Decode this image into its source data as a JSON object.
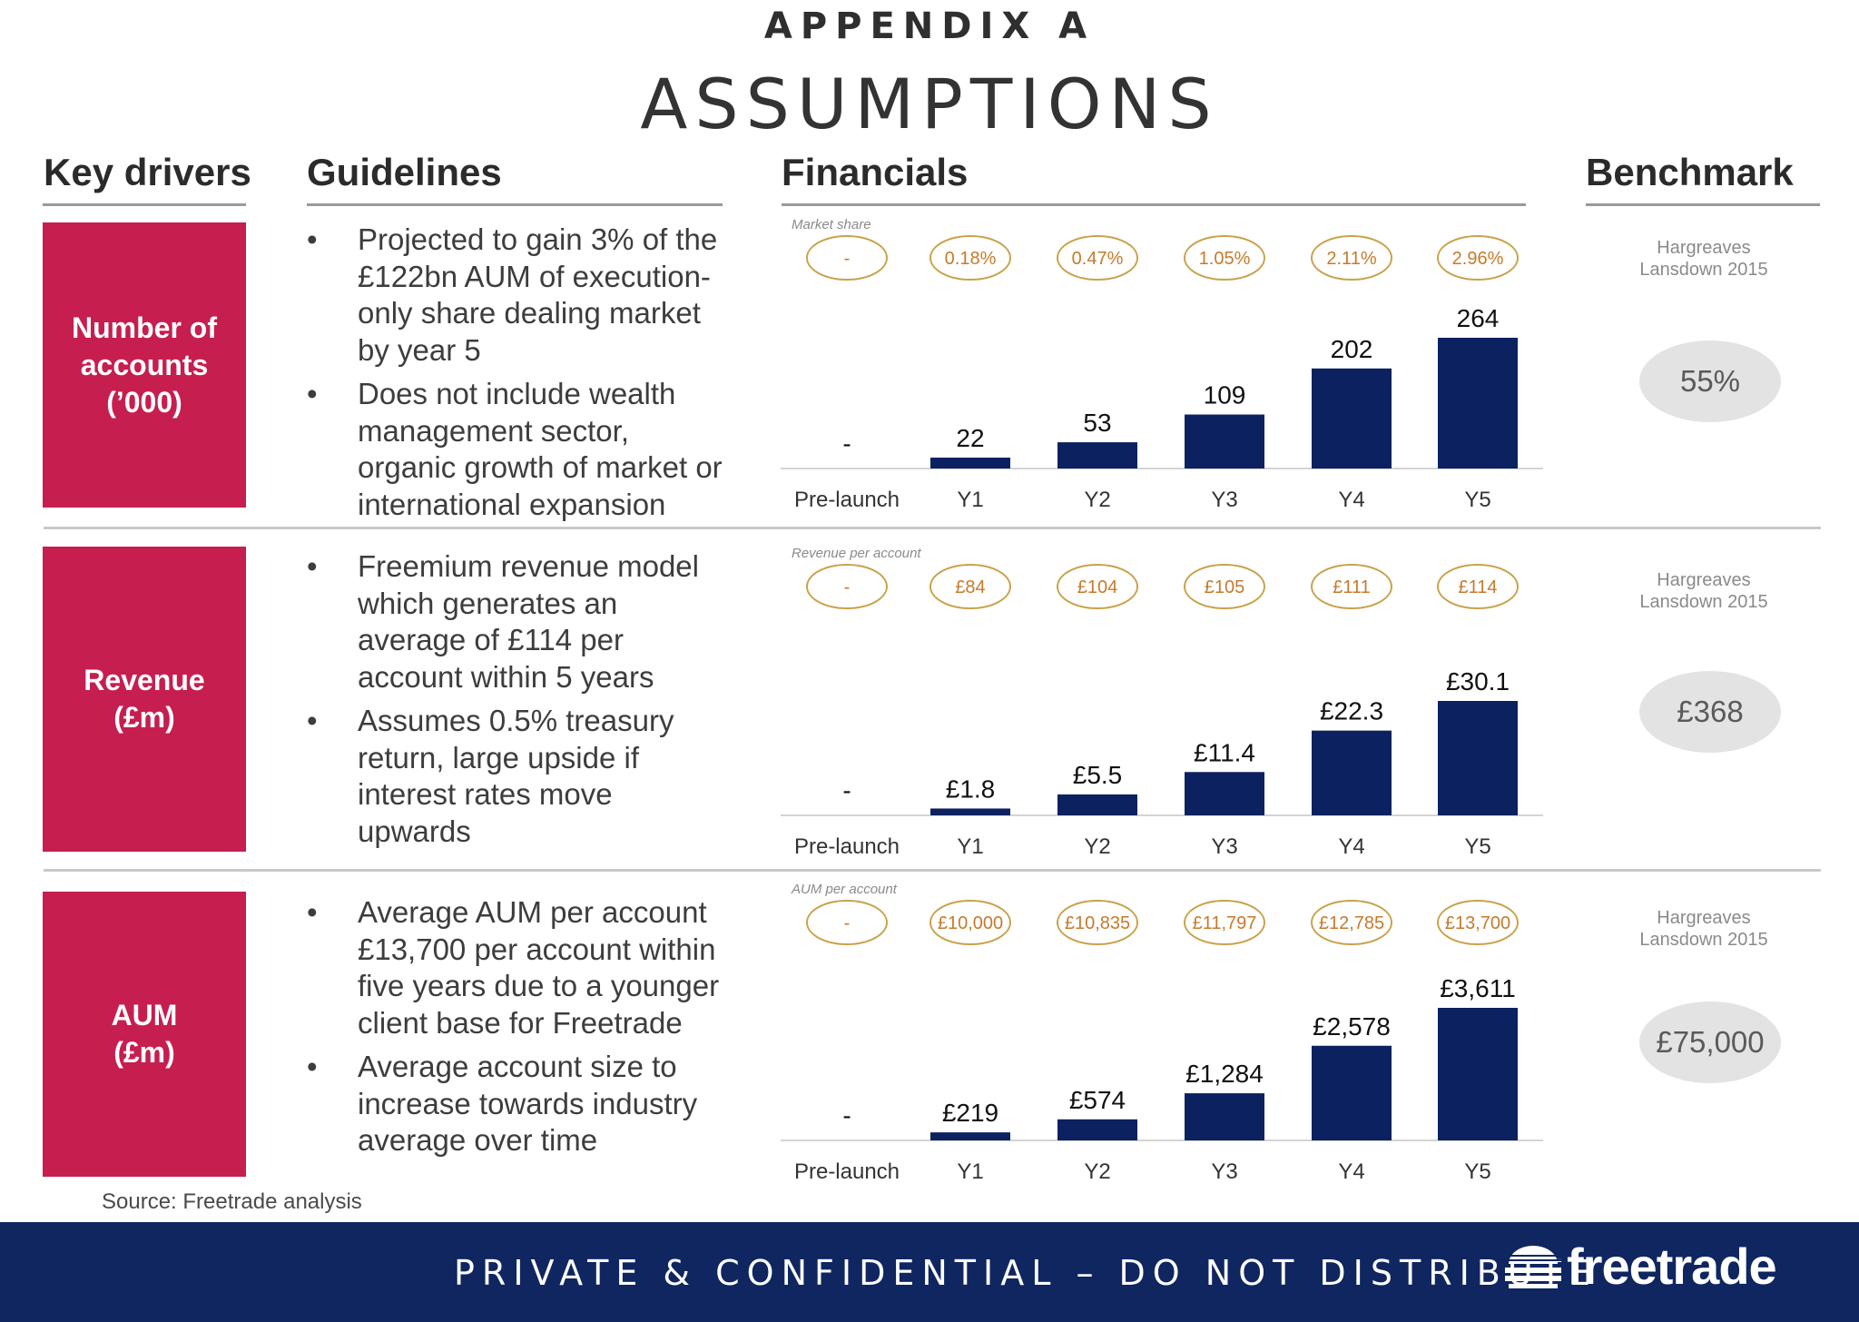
{
  "header": {
    "appendix": "APPENDIX A",
    "title": "ASSUMPTIONS"
  },
  "columns": {
    "drivers": "Key drivers",
    "guidelines": "Guidelines",
    "financials": "Financials",
    "benchmark": "Benchmark"
  },
  "rows": [
    {
      "driver": "Number of\naccounts\n(’000)",
      "guidelines": [
        "Projected to gain 3% of the £122bn AUM of execution-only share dealing market by year 5",
        "Does not include wealth management sector, organic growth of market or international expansion"
      ],
      "benchmark_label": "Hargreaves\nLansdown 2015",
      "benchmark_value": "55%"
    },
    {
      "driver": "Revenue\n(£m)",
      "guidelines": [
        "Freemium revenue model which generates an average of £114 per account within 5 years",
        "Assumes 0.5% treasury return, large upside if interest rates move upwards"
      ],
      "benchmark_label": "Hargreaves\nLansdown 2015",
      "benchmark_value": "£368"
    },
    {
      "driver": "AUM\n(£m)",
      "guidelines": [
        "Average AUM per account £13,700 per account within five years due to a younger client base for Freetrade",
        "Average account size to increase towards industry average over time"
      ],
      "benchmark_label": "Hargreaves\nLansdown 2015",
      "benchmark_value": "£75,000"
    }
  ],
  "chart_data": [
    {
      "type": "bar",
      "metric_caption": "Market share",
      "categories": [
        "Pre-launch",
        "Y1",
        "Y2",
        "Y3",
        "Y4",
        "Y5"
      ],
      "metric_labels": [
        "-",
        "0.18%",
        "0.47%",
        "1.05%",
        "2.11%",
        "2.96%"
      ],
      "values": [
        0,
        22,
        53,
        109,
        202,
        264
      ],
      "value_labels": [
        "-",
        "22",
        "53",
        "109",
        "202",
        "264"
      ],
      "ylim": [
        0,
        264
      ]
    },
    {
      "type": "bar",
      "metric_caption": "Revenue per account",
      "categories": [
        "Pre-launch",
        "Y1",
        "Y2",
        "Y3",
        "Y4",
        "Y5"
      ],
      "metric_labels": [
        "-",
        "£84",
        "£104",
        "£105",
        "£111",
        "£114"
      ],
      "values": [
        0,
        1.8,
        5.5,
        11.4,
        22.3,
        30.1
      ],
      "value_labels": [
        "-",
        "£1.8",
        "£5.5",
        "£11.4",
        "£22.3",
        "£30.1"
      ],
      "ylim": [
        0,
        30.1
      ]
    },
    {
      "type": "bar",
      "metric_caption": "AUM per account",
      "categories": [
        "Pre-launch",
        "Y1",
        "Y2",
        "Y3",
        "Y4",
        "Y5"
      ],
      "metric_labels": [
        "-",
        "£10,000",
        "£10,835",
        "£11,797",
        "£12,785",
        "£13,700"
      ],
      "values": [
        0,
        219,
        574,
        1284,
        2578,
        3611
      ],
      "value_labels": [
        "-",
        "£219",
        "£574",
        "£1,284",
        "£2,578",
        "£3,611"
      ],
      "ylim": [
        0,
        3611
      ]
    }
  ],
  "source": "Source: Freetrade analysis",
  "footer": {
    "text": "PRIVATE & CONFIDENTIAL – DO NOT DISTRIBUTE",
    "logo": "freetrade"
  },
  "colors": {
    "driver_box": "#c61e4f",
    "bar": "#0b2160",
    "metric_oval": "#c9a24a",
    "metric_text": "#c77a2a",
    "footer": "#0f2660",
    "benchmark_oval": "#e3e3e3"
  }
}
